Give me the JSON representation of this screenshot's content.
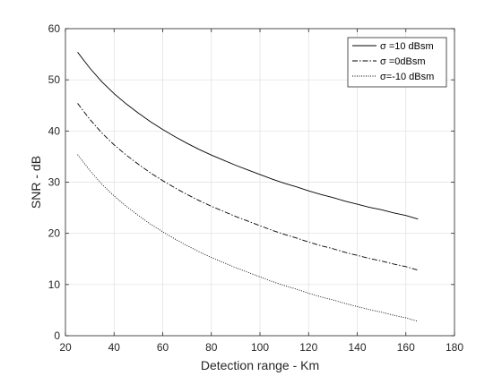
{
  "chart_data": {
    "type": "line",
    "title": "",
    "xlabel": "Detection range - Km",
    "ylabel": "SNR - dB",
    "xlim": [
      20,
      180
    ],
    "ylim": [
      0,
      60
    ],
    "xticks": [
      20,
      40,
      60,
      80,
      100,
      120,
      140,
      160,
      180
    ],
    "yticks": [
      0,
      10,
      20,
      30,
      40,
      50,
      60
    ],
    "grid": true,
    "legend_position": "top-right",
    "x": [
      25,
      30,
      35,
      40,
      45,
      50,
      55,
      60,
      65,
      70,
      75,
      80,
      85,
      90,
      95,
      100,
      105,
      110,
      115,
      120,
      125,
      130,
      135,
      140,
      145,
      150,
      155,
      160,
      165
    ],
    "series": [
      {
        "name": "σ =10 dBsm",
        "line_style": "solid",
        "values": [
          55.4,
          52.3,
          49.6,
          47.3,
          45.3,
          43.5,
          41.8,
          40.3,
          38.9,
          37.6,
          36.4,
          35.3,
          34.3,
          33.3,
          32.4,
          31.5,
          30.6,
          29.8,
          29.1,
          28.3,
          27.6,
          27.0,
          26.3,
          25.7,
          25.1,
          24.6,
          24.0,
          23.5,
          22.8
        ]
      },
      {
        "name": "σ =0dBsm",
        "line_style": "dashdot",
        "values": [
          45.4,
          42.3,
          39.6,
          37.3,
          35.3,
          33.5,
          31.8,
          30.3,
          28.9,
          27.6,
          26.4,
          25.3,
          24.3,
          23.3,
          22.4,
          21.5,
          20.6,
          19.8,
          19.1,
          18.3,
          17.6,
          17.0,
          16.3,
          15.7,
          15.1,
          14.6,
          14.0,
          13.5,
          12.8
        ]
      },
      {
        "name": "σ=-10 dBsm",
        "line_style": "dotted",
        "values": [
          35.4,
          32.3,
          29.6,
          27.3,
          25.3,
          23.5,
          21.8,
          20.3,
          18.9,
          17.6,
          16.4,
          15.3,
          14.3,
          13.3,
          12.4,
          11.5,
          10.6,
          9.8,
          9.1,
          8.3,
          7.6,
          7.0,
          6.3,
          5.7,
          5.1,
          4.6,
          4.0,
          3.5,
          2.8
        ]
      }
    ]
  }
}
